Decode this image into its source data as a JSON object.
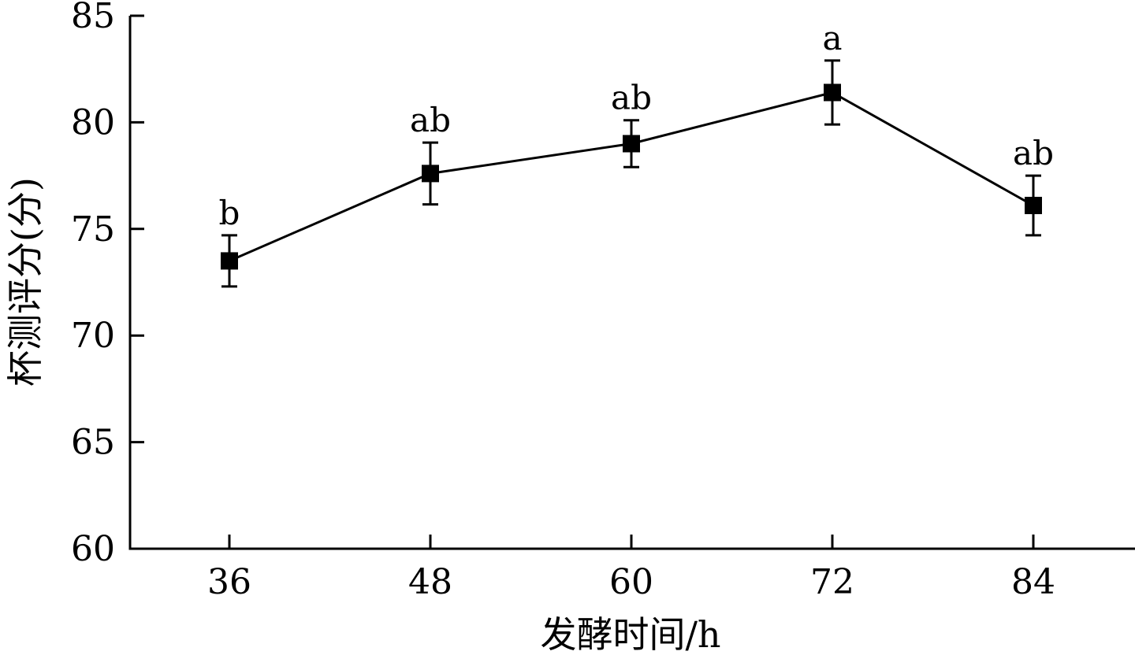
{
  "chart_data": {
    "type": "line",
    "x": [
      36,
      48,
      60,
      72,
      84
    ],
    "x_tick_labels": [
      "36",
      "48",
      "60",
      "72",
      "84"
    ],
    "series": [
      {
        "values": [
          73.5,
          77.6,
          79.0,
          81.4,
          76.1
        ],
        "error": [
          1.2,
          1.45,
          1.1,
          1.5,
          1.4
        ],
        "significance": [
          "b",
          "ab",
          "ab",
          "a",
          "ab"
        ],
        "marker": "square",
        "color": "#000000"
      }
    ],
    "xlabel": "发酵时间/h",
    "ylabel": "杯测评分(分)",
    "ylim": [
      60,
      85
    ],
    "y_ticks": [
      60,
      65,
      70,
      75,
      80,
      85
    ],
    "y_tick_labels": [
      "60",
      "65",
      "70",
      "75",
      "80",
      "85"
    ],
    "grid": false,
    "legend": "none"
  }
}
